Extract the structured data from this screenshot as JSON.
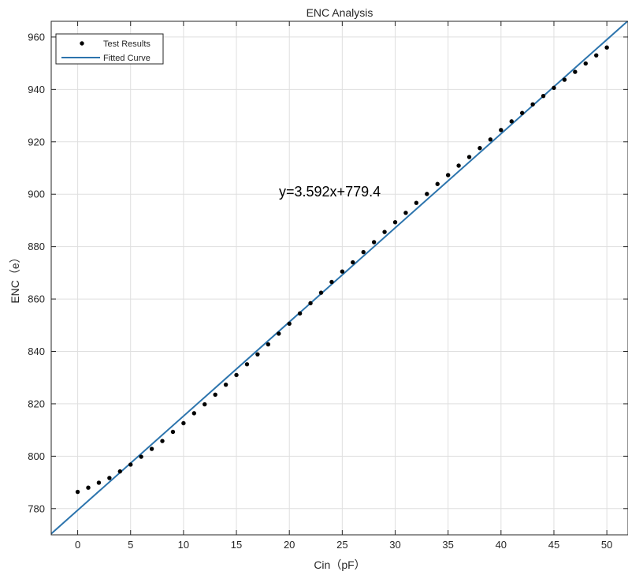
{
  "chart_data": {
    "type": "scatter",
    "title": "ENC Analysis",
    "xlabel": "Cin（pF）",
    "ylabel": "ENC（e）",
    "xlim": [
      -2.5,
      52
    ],
    "ylim": [
      770,
      966
    ],
    "xticks": [
      0,
      5,
      10,
      15,
      20,
      25,
      30,
      35,
      40,
      45,
      50
    ],
    "yticks": [
      780,
      800,
      820,
      840,
      860,
      880,
      900,
      920,
      940,
      960
    ],
    "grid": true,
    "legend_position": "top-left",
    "annotation": "y=3.592x+779.4",
    "series": [
      {
        "name": "Test Results",
        "kind": "scatter",
        "color": "#000000",
        "x": [
          0,
          1,
          2,
          3,
          4,
          5,
          6,
          7,
          8,
          9,
          10,
          11,
          12,
          13,
          14,
          15,
          16,
          17,
          18,
          19,
          20,
          21,
          22,
          23,
          24,
          25,
          26,
          27,
          28,
          29,
          30,
          31,
          32,
          33,
          34,
          35,
          36,
          37,
          38,
          39,
          40,
          41,
          42,
          43,
          44,
          45,
          46,
          47,
          48,
          49,
          50
        ],
        "y": [
          786.4,
          788.0,
          789.9,
          791.7,
          794.2,
          796.8,
          799.8,
          802.8,
          805.8,
          809.3,
          812.6,
          816.4,
          819.8,
          823.5,
          827.3,
          831.0,
          835.1,
          838.9,
          842.7,
          846.8,
          850.6,
          854.5,
          858.4,
          862.4,
          866.5,
          870.5,
          874.0,
          877.9,
          881.7,
          885.6,
          889.3,
          892.9,
          896.7,
          900.1,
          903.9,
          907.3,
          910.9,
          914.2,
          917.6,
          920.9,
          924.5,
          927.8,
          931.0,
          934.3,
          937.5,
          940.6,
          943.7,
          946.7,
          949.9,
          953.0,
          956.0
        ]
      },
      {
        "name": "Fitted Curve",
        "kind": "line",
        "color": "#2c74ad",
        "slope": 3.592,
        "intercept": 779.4
      }
    ]
  }
}
